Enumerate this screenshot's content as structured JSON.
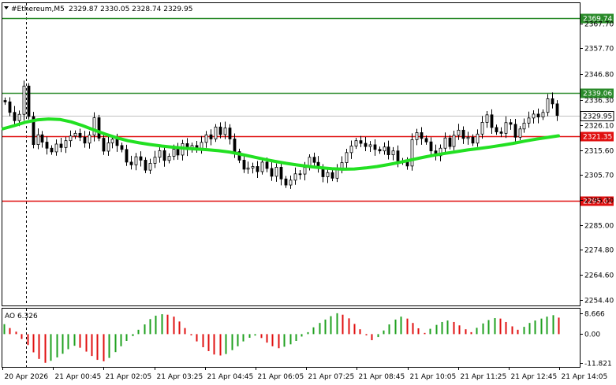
{
  "header": {
    "arrow_icon": "triangle-down-icon",
    "symbol_text": "#Ethereum,M5",
    "ohlc_text": "2329.87 2330.05 2328.74 2329.95"
  },
  "price_axis": {
    "ticks": [
      "2367.70",
      "2357.70",
      "2346.80",
      "2336.30",
      "2326.10",
      "2315.60",
      "2305.70",
      "2295.30",
      "2285.00",
      "2274.80",
      "2264.60",
      "2254.40"
    ],
    "tick_values": [
      2367.7,
      2357.7,
      2346.8,
      2336.3,
      2326.1,
      2315.6,
      2305.7,
      2295.3,
      2285.0,
      2274.8,
      2264.6,
      2254.4
    ],
    "range": [
      2252.0,
      2376.0
    ]
  },
  "levels": [
    {
      "value": 2369.74,
      "label": "2369.74",
      "color": "#2a8a2a",
      "kind": "green"
    },
    {
      "value": 2339.06,
      "label": "2339.06",
      "color": "#2a8a2a",
      "kind": "green"
    },
    {
      "value": 2321.35,
      "label": "2321.35",
      "color": "#e01010",
      "kind": "red"
    },
    {
      "value": 2295.01,
      "label": "2295.01",
      "color": "#e01010",
      "kind": "red"
    }
  ],
  "current_price": {
    "value": 2329.95,
    "label": "2329.95"
  },
  "time_axis": {
    "labels": [
      "20 Apr 2026",
      "21 Apr 00:45",
      "21 Apr 02:05",
      "21 Apr 03:25",
      "21 Apr 04:45",
      "21 Apr 06:05",
      "21 Apr 07:25",
      "21 Apr 08:45",
      "21 Apr 10:05",
      "21 Apr 11:25",
      "21 Apr 12:45",
      "21 Apr 14:05"
    ]
  },
  "indicator": {
    "label": "AO 6.326",
    "ticks": [
      "8.666",
      "0.00",
      "-11.821"
    ],
    "tick_values": [
      8.666,
      0.0,
      -11.821
    ],
    "range": [
      -13.5,
      10.5
    ]
  },
  "colors": {
    "ma_line": "#22e022",
    "ao_up": "#1fa01f",
    "ao_down": "#e01010",
    "candle": "#000000",
    "grid_border": "#000000"
  },
  "chart_data": {
    "type": "candlestick",
    "closes": [
      2335.5,
      2331.2,
      2327.8,
      2330.4,
      2342.0,
      2329.5,
      2318.0,
      2322.0,
      2319.0,
      2316.5,
      2315.0,
      2318.2,
      2316.8,
      2319.6,
      2321.5,
      2322.6,
      2321.0,
      2318.6,
      2321.9,
      2329.0,
      2320.6,
      2315.3,
      2318.7,
      2320.2,
      2317.6,
      2316.0,
      2310.8,
      2309.7,
      2313.0,
      2311.6,
      2307.5,
      2310.3,
      2312.8,
      2315.5,
      2311.5,
      2313.2,
      2316.1,
      2313.7,
      2318.4,
      2315.9,
      2317.6,
      2316.2,
      2318.9,
      2322.0,
      2320.3,
      2325.2,
      2322.1,
      2324.8,
      2320.3,
      2315.1,
      2311.6,
      2307.9,
      2308.4,
      2309.0,
      2306.9,
      2310.8,
      2308.2,
      2305.0,
      2308.7,
      2303.9,
      2301.4,
      2303.4,
      2306.0,
      2305.9,
      2308.6,
      2312.8,
      2310.7,
      2308.4,
      2304.8,
      2306.5,
      2304.2,
      2308.1,
      2310.6,
      2314.7,
      2317.4,
      2319.6,
      2318.5,
      2317.2,
      2317.9,
      2316.0,
      2315.4,
      2317.0,
      2313.8,
      2315.4,
      2311.3,
      2310.9,
      2309.2,
      2320.0,
      2322.9,
      2320.5,
      2319.1,
      2315.4,
      2313.4,
      2316.5,
      2320.7,
      2317.2,
      2321.8,
      2323.9,
      2320.5,
      2321.0,
      2318.6,
      2322.3,
      2327.1,
      2330.2,
      2325.0,
      2323.2,
      2322.6,
      2327.0,
      2326.3,
      2321.0,
      2324.4,
      2326.8,
      2328.9,
      2330.5,
      2329.3,
      2331.2,
      2336.8,
      2334.7,
      2329.95
    ],
    "moving_average_levels": [
      2324.5,
      2325.8,
      2327.2,
      2328.1,
      2328.5,
      2328.3,
      2327.3,
      2325.8,
      2324.0,
      2322.3,
      2320.8,
      2319.6,
      2318.7,
      2318.0,
      2317.4,
      2316.9,
      2316.5,
      2316.2,
      2315.9,
      2315.5,
      2314.9,
      2314.0,
      2313.0,
      2312.0,
      2311.1,
      2310.3,
      2309.6,
      2309.0,
      2308.5,
      2308.1,
      2307.9,
      2308.0,
      2308.4,
      2309.0,
      2309.8,
      2310.7,
      2311.7,
      2312.7,
      2313.6,
      2314.4,
      2315.1,
      2315.8,
      2316.4,
      2317.0,
      2317.7,
      2318.5,
      2319.4,
      2320.2,
      2320.9,
      2321.6
    ],
    "ao_values": [
      4.1,
      2.5,
      1.0,
      -2.0,
      -4.5,
      -7.5,
      -10.2,
      -11.8,
      -11.0,
      -9.6,
      -8.1,
      -6.2,
      -4.8,
      -5.6,
      -7.2,
      -9.0,
      -10.6,
      -11.2,
      -9.8,
      -7.4,
      -5.0,
      -2.8,
      -0.8,
      1.8,
      4.0,
      6.2,
      7.6,
      8.2,
      8.0,
      7.2,
      5.2,
      2.5,
      -0.5,
      -3.0,
      -5.4,
      -7.0,
      -8.4,
      -8.8,
      -8.2,
      -6.6,
      -5.0,
      -3.0,
      -1.5,
      -0.6,
      -1.6,
      -3.5,
      -5.0,
      -5.8,
      -5.2,
      -4.2,
      -2.8,
      -1.0,
      0.8,
      2.8,
      4.6,
      6.0,
      7.4,
      8.6,
      8.0,
      6.5,
      4.2,
      2.0,
      -0.5,
      -2.5,
      -1.2,
      1.5,
      4.0,
      6.0,
      7.2,
      6.4,
      4.6,
      2.4,
      0.5,
      2.2,
      3.8,
      5.0,
      5.6,
      5.0,
      3.6,
      2.0,
      0.8,
      2.6,
      4.4,
      5.8,
      6.6,
      6.4,
      5.0,
      3.2,
      1.8,
      3.0,
      4.6,
      5.6,
      6.4,
      7.2,
      7.8,
      6.8
    ]
  }
}
